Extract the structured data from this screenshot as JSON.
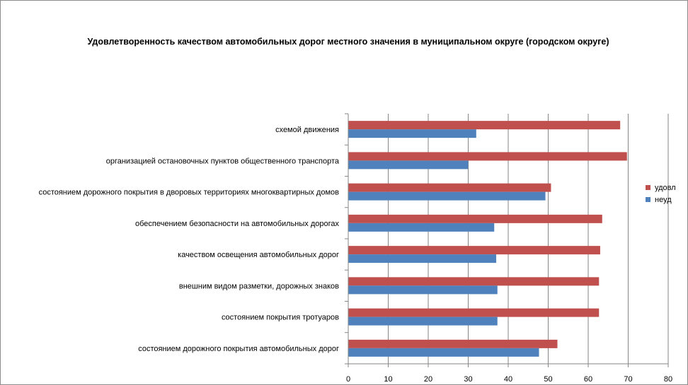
{
  "chart_data": {
    "type": "bar",
    "orientation": "horizontal",
    "title": "Удовлетворенность качеством автомобильных дорог местного значения в муниципальном округе (городском округе)",
    "categories": [
      "схемой движения",
      "организацией остановочных пунктов общественного транспорта",
      "состоянием дорожного покрытия в дворовых территориях многоквартирных домов",
      "обеспечением безопасности на автомобильных дорогах",
      "качеством освещения автомобильных дорог",
      "внешним видом разметки, дорожных знаков",
      "состоянием покрытия тротуаров",
      "состоянием дорожного покрытия автомобильных дорог"
    ],
    "series": [
      {
        "name": "удовл",
        "color": "#c0504d",
        "values": [
          68,
          69.7,
          50.7,
          63.5,
          63,
          62.7,
          62.7,
          52.3
        ]
      },
      {
        "name": "неуд",
        "color": "#4f81bd",
        "values": [
          32,
          30,
          49.3,
          36.5,
          37,
          37.3,
          37.3,
          47.7
        ]
      }
    ],
    "xlim": [
      0,
      80
    ],
    "xticks": [
      0,
      10,
      20,
      30,
      40,
      50,
      60,
      70,
      80
    ],
    "grid": "vertical",
    "legend_position": "right"
  }
}
